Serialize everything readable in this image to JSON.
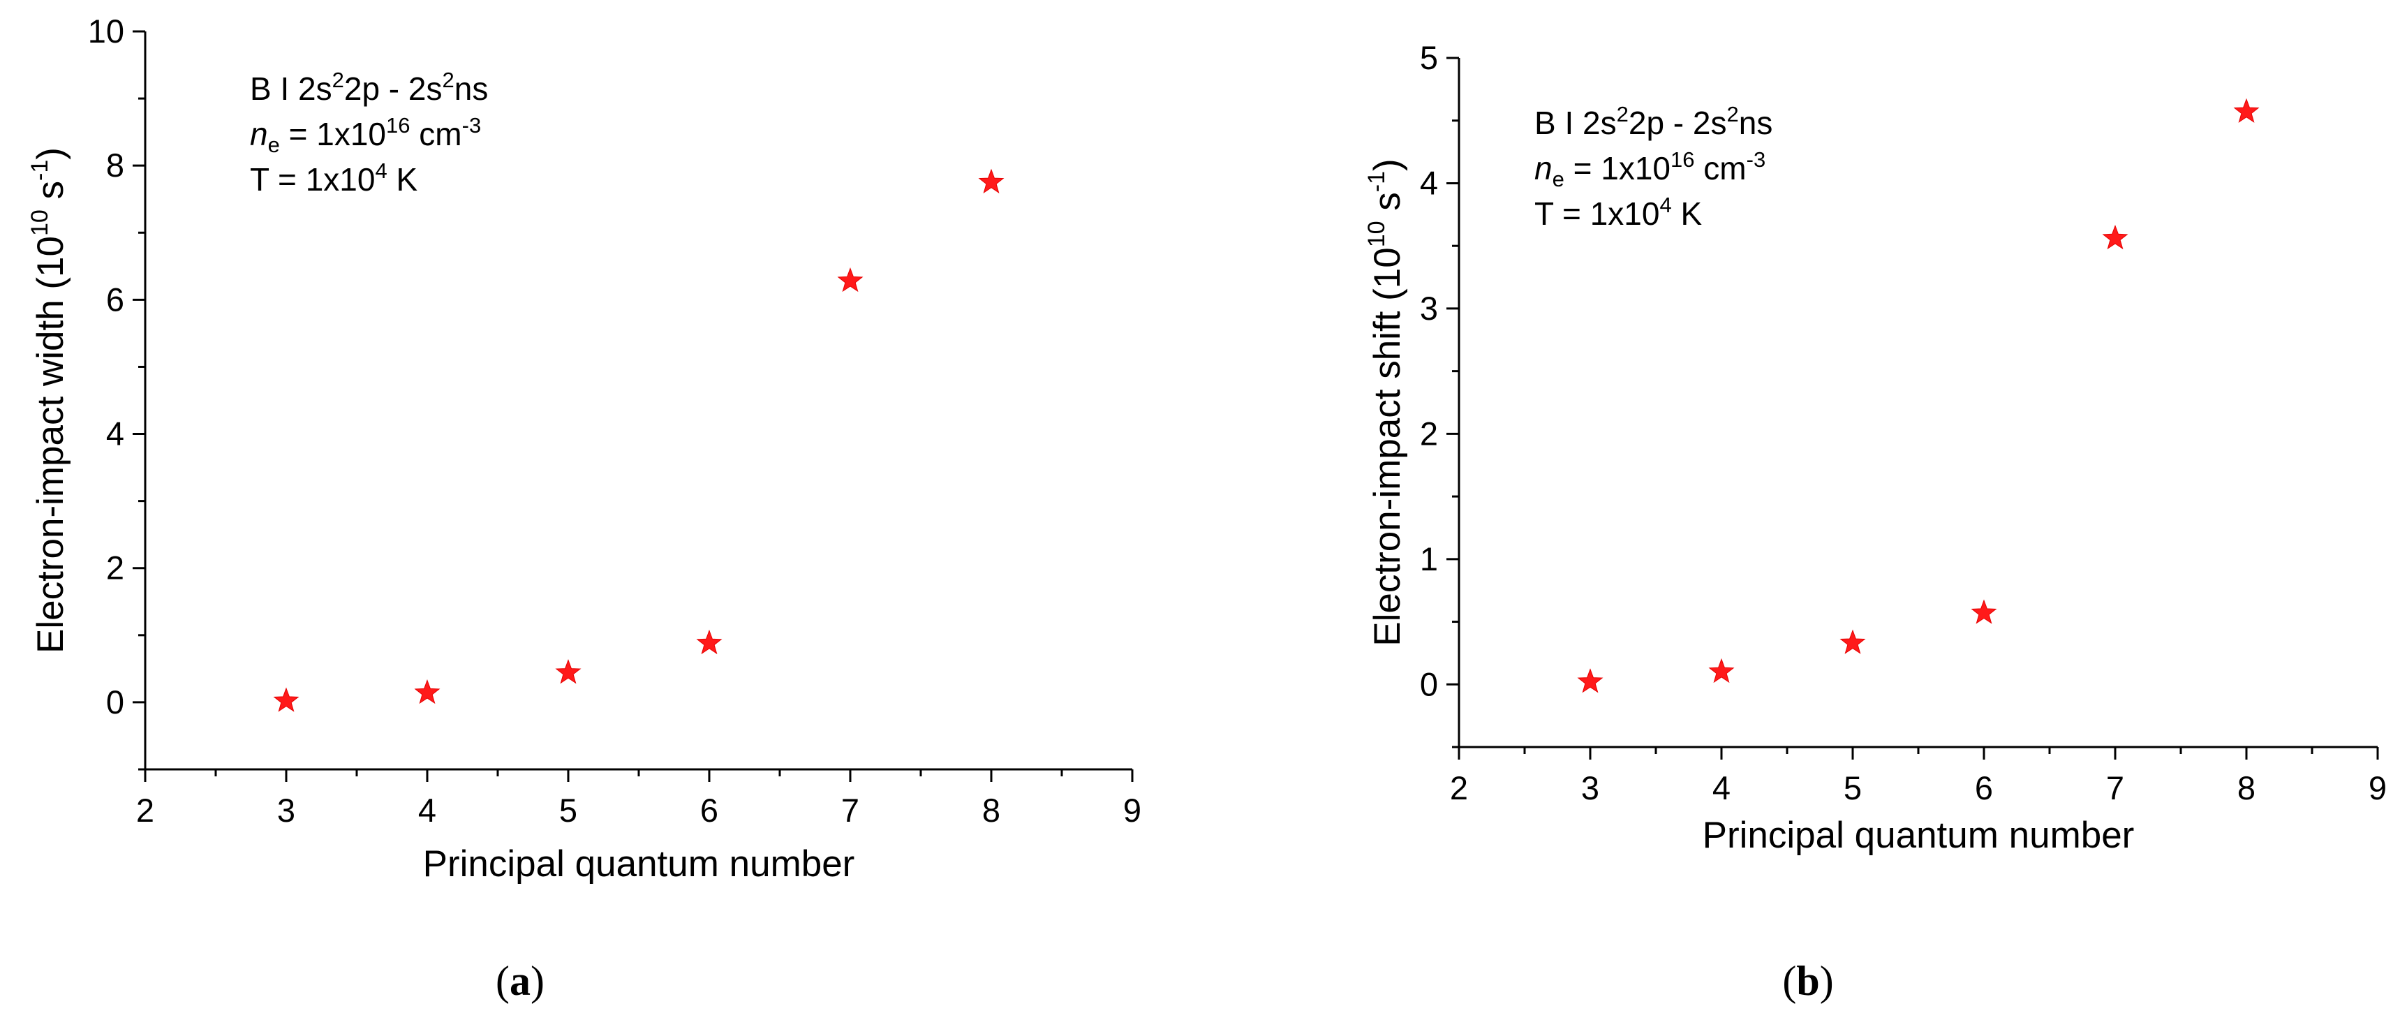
{
  "chart_data": [
    {
      "id": "a",
      "type": "scatter",
      "caption_letter": "a",
      "xlabel": "Principal quantum number",
      "ylabel": "Electron-impact width (10",
      "ylabel_exp": "10",
      "ylabel_unit": "s",
      "ylabel_unit_exp": "-1",
      "xlim": [
        2,
        9
      ],
      "ylim": [
        -1,
        10
      ],
      "xticks": [
        2,
        3,
        4,
        5,
        6,
        7,
        8,
        9
      ],
      "yticks": [
        0,
        2,
        4,
        6,
        8,
        10
      ],
      "annotation": {
        "line1": {
          "prefix": "B I 2s",
          "sup1": "2",
          "mid": "2p - 2s",
          "sup2": "2",
          "suffix": "ns"
        },
        "line2": {
          "n": "n",
          "n_sub": "e",
          "eq": " = 1x10",
          "sup": "16",
          "unit": " cm",
          "unit_sup": "-3"
        },
        "line3": {
          "eq": "T = 1x10",
          "sup": "4",
          "unit": " K"
        }
      },
      "series": [
        {
          "marker": "star",
          "color": "#ff1a1a",
          "x": [
            3,
            4,
            5,
            6,
            7,
            8
          ],
          "y": [
            0.02,
            0.14,
            0.44,
            0.88,
            6.28,
            7.75
          ]
        }
      ]
    },
    {
      "id": "b",
      "type": "scatter",
      "caption_letter": "b",
      "xlabel": "Principal quantum number",
      "ylabel": "Electron-impact shift (10",
      "ylabel_exp": "10",
      "ylabel_unit": "s",
      "ylabel_unit_exp": "-1",
      "xlim": [
        2,
        9
      ],
      "ylim": [
        -0.5,
        5
      ],
      "xticks": [
        2,
        3,
        4,
        5,
        6,
        7,
        8,
        9
      ],
      "yticks": [
        0,
        1,
        2,
        3,
        4,
        5
      ],
      "annotation": {
        "line1": {
          "prefix": "B I 2s",
          "sup1": "2",
          "mid": "2p - 2s",
          "sup2": "2",
          "suffix": "ns"
        },
        "line2": {
          "n": "n",
          "n_sub": "e",
          "eq": " = 1x10",
          "sup": "16",
          "unit": " cm",
          "unit_sup": "-3"
        },
        "line3": {
          "eq": "T = 1x10",
          "sup": "4",
          "unit": " K"
        }
      },
      "series": [
        {
          "marker": "star",
          "color": "#ff1a1a",
          "x": [
            3,
            4,
            5,
            6,
            7,
            8
          ],
          "y": [
            0.02,
            0.1,
            0.33,
            0.57,
            3.56,
            4.57
          ]
        }
      ]
    }
  ]
}
